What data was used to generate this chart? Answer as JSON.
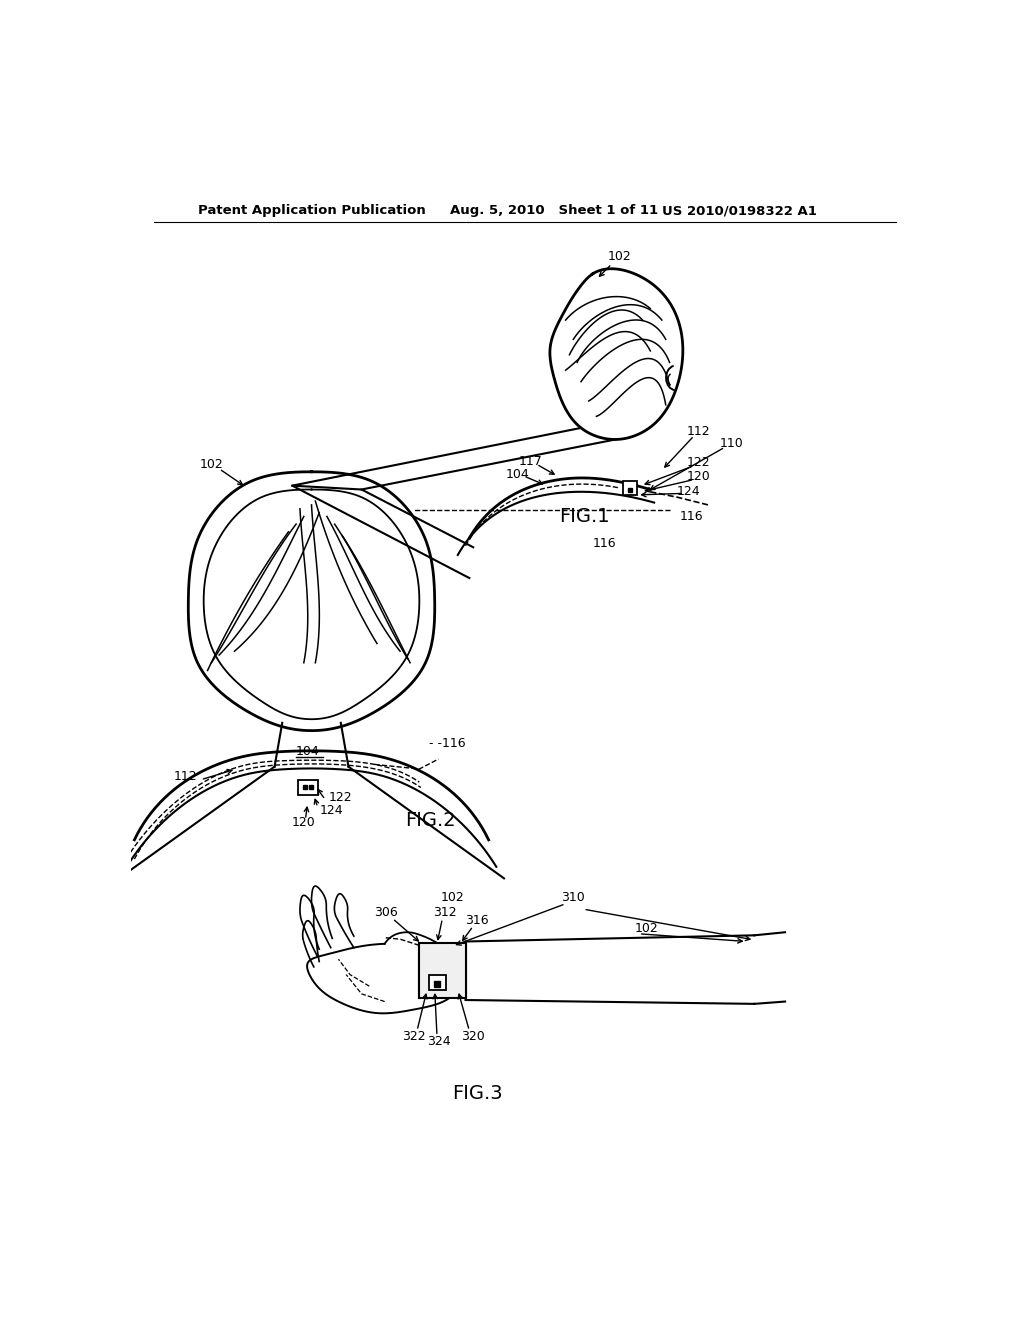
{
  "bg_color": "#ffffff",
  "header_left": "Patent Application Publication",
  "header_mid": "Aug. 5, 2010   Sheet 1 of 11",
  "header_right": "US 2010/0198322 A1",
  "fig1_label": "FIG.1",
  "fig2_label": "FIG.2",
  "fig3_label": "FIG.3",
  "line_color": "#000000",
  "text_color": "#000000"
}
